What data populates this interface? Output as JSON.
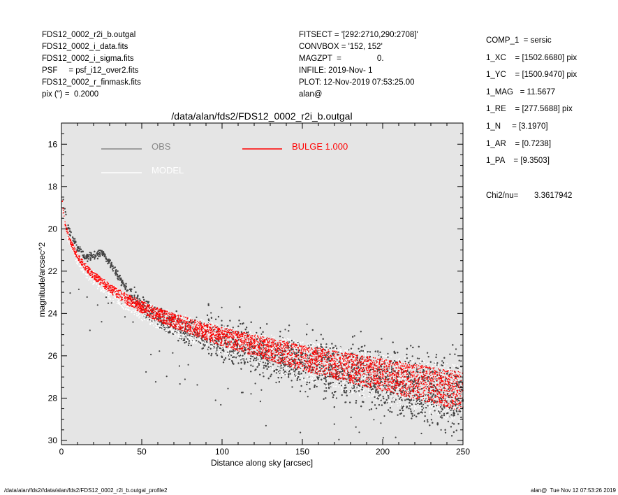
{
  "header_left": [
    "FDS12_0002_r2i_b.outgal",
    "FDS12_0002_i_data.fits",
    "FDS12_0002_i_sigma.fits",
    "PSF     = psf_i12_over2.fits",
    "FDS12_0002_r_finmask.fits",
    "pix (\") =  0.2000"
  ],
  "header_mid": [
    "FITSECT = '[292:2710,290:2708]'",
    "CONVBOX = '152, 152'",
    "MAGZPT  =                0.",
    "INFILE: 2019-Nov- 1",
    "PLOT: 12-Nov-2019 07:53:25.00",
    "alan@"
  ],
  "params": [
    "COMP_1  = sersic",
    "1_XC    = [1502.6680] pix",
    "1_YC    = [1500.9470] pix",
    "1_MAG   = 11.5677",
    "1_RE    = [277.5688] pix",
    "1_N     = [3.1970]",
    "1_AR    = [0.7238]",
    "1_PA    = [9.3503]"
  ],
  "chi2": {
    "label": "Chi2/nu=",
    "value": "3.3617942"
  },
  "footer_left": "/data/alan/fds2//data/alan/fds2/FDS12_0002_r2i_b.outgal_profile2",
  "footer_right": "alan@  Tue Nov 12 07:53:26 2019",
  "colors": {
    "background": "#e5e5e5",
    "obs": "#454545",
    "obs_line": "#888888",
    "model": "#ffffff",
    "bulge": "#ff0000"
  },
  "chart_data": {
    "type": "scatter",
    "title": "/data/alan/fds2/FDS12_0002_r2i_b.outgal",
    "xlabel": "Distance along sky [arcsec]",
    "ylabel": "magnitude/arcsec^2",
    "xlim": [
      0,
      250
    ],
    "ylim": [
      30.2,
      15.0
    ],
    "y_inverted": true,
    "x_ticks": [
      0,
      50,
      100,
      150,
      200,
      250
    ],
    "y_ticks": [
      16,
      18,
      20,
      22,
      24,
      26,
      28,
      30
    ],
    "legend": [
      {
        "name": "OBS",
        "color": "#888888"
      },
      {
        "name": "BULGE  1.000",
        "color": "#ff0000"
      },
      {
        "name": "MODEL",
        "color": "#ffffff"
      }
    ],
    "series": [
      {
        "name": "OBS",
        "x": [
          1,
          2,
          3,
          5,
          8,
          10,
          15,
          20,
          25,
          30,
          35,
          40,
          50,
          60,
          70,
          80,
          100,
          120,
          150,
          175,
          200,
          225,
          250
        ],
        "y": [
          18.6,
          19.1,
          19.6,
          20.1,
          20.6,
          20.9,
          21.3,
          21.3,
          21.1,
          21.6,
          22.2,
          22.8,
          23.6,
          24.2,
          24.6,
          24.9,
          25.5,
          25.9,
          26.5,
          26.9,
          27.3,
          27.7,
          28.1
        ]
      },
      {
        "name": "BULGE  1.000",
        "x": [
          0.5,
          1,
          2,
          3,
          5,
          8,
          10,
          15,
          20,
          30,
          40,
          50,
          60,
          70,
          80,
          100,
          120,
          150,
          175,
          200,
          225,
          250
        ],
        "y": [
          18.7,
          19.1,
          19.6,
          20.0,
          20.5,
          21.0,
          21.3,
          21.8,
          22.2,
          22.8,
          23.3,
          23.7,
          24.05,
          24.35,
          24.6,
          25.1,
          25.5,
          26.1,
          26.5,
          26.9,
          27.3,
          27.7
        ]
      },
      {
        "name": "MODEL",
        "x": [
          0.5,
          1,
          2,
          3,
          5,
          8,
          10,
          15,
          20,
          30,
          40,
          50,
          60,
          70,
          80,
          100,
          120,
          150,
          175,
          200,
          225,
          250
        ],
        "y": [
          18.7,
          19.1,
          19.6,
          20.0,
          20.5,
          21.0,
          21.3,
          21.8,
          22.2,
          22.8,
          23.3,
          23.7,
          24.05,
          24.35,
          24.6,
          25.1,
          25.5,
          26.1,
          26.5,
          26.9,
          27.3,
          27.7
        ]
      }
    ]
  }
}
